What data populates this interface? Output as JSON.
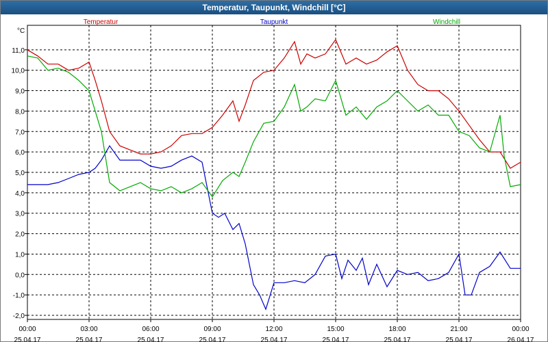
{
  "window": {
    "title": "Temperatur, Taupunkt, Windchill [°C]"
  },
  "chart_data": {
    "type": "line",
    "title": "Temperatur, Taupunkt, Windchill [°C]",
    "ylabel": "°C",
    "xlabel": "",
    "grid": true,
    "legend_position": "top",
    "ylim": [
      -2.2,
      12.2
    ],
    "xlim": [
      0,
      24
    ],
    "y_ticks": [
      11.0,
      10.0,
      9.0,
      8.0,
      7.0,
      6.0,
      5.0,
      4.0,
      3.0,
      2.0,
      1.0,
      0.0,
      -1.0,
      -2.0
    ],
    "y_tick_labels": [
      "11,0",
      "10,0",
      "9,0",
      "8,0",
      "7,0",
      "6,0",
      "5,0",
      "4,0",
      "3,0",
      "2,0",
      "1,0",
      "0,0",
      "-1,0",
      "-2,0"
    ],
    "x_ticks": [
      {
        "x": 0,
        "time": "00:00",
        "date": "25.04.17"
      },
      {
        "x": 3,
        "time": "03:00",
        "date": "25.04.17"
      },
      {
        "x": 6,
        "time": "06:00",
        "date": "25.04.17"
      },
      {
        "x": 9,
        "time": "09:00",
        "date": "25.04.17"
      },
      {
        "x": 12,
        "time": "12:00",
        "date": "25.04.17"
      },
      {
        "x": 15,
        "time": "15:00",
        "date": "25.04.17"
      },
      {
        "x": 18,
        "time": "18:00",
        "date": "25.04.17"
      },
      {
        "x": 21,
        "time": "21:00",
        "date": "25.04.17"
      },
      {
        "x": 24,
        "time": "00:00",
        "date": "26.04.17"
      }
    ],
    "series": [
      {
        "name": "Temperatur",
        "color": "#cc0000",
        "x": [
          0,
          0.5,
          1,
          1.5,
          2,
          2.5,
          3,
          3.3,
          3.6,
          4,
          4.5,
          5,
          5.5,
          6,
          6.5,
          7,
          7.5,
          8,
          8.5,
          9,
          9.5,
          10,
          10.3,
          10.6,
          11,
          11.5,
          12,
          12.5,
          13,
          13.3,
          13.6,
          14,
          14.5,
          15,
          15.5,
          16,
          16.5,
          17,
          17.5,
          18,
          18.5,
          19,
          19.5,
          20,
          20.5,
          21,
          21.5,
          22,
          22.5,
          23,
          23.5,
          24
        ],
        "y": [
          11.0,
          10.7,
          10.3,
          10.3,
          10.0,
          10.1,
          10.4,
          9.5,
          8.5,
          7.0,
          6.3,
          6.1,
          5.9,
          5.9,
          6.0,
          6.3,
          6.8,
          6.9,
          6.9,
          7.2,
          7.8,
          8.5,
          7.5,
          8.3,
          9.5,
          9.9,
          10.0,
          10.6,
          11.4,
          10.3,
          10.8,
          10.6,
          10.8,
          11.5,
          10.3,
          10.6,
          10.3,
          10.5,
          10.9,
          11.2,
          10.0,
          9.3,
          9.0,
          9.0,
          8.6,
          8.0,
          7.3,
          6.6,
          6.0,
          6.0,
          5.2,
          5.5
        ]
      },
      {
        "name": "Taupunkt",
        "color": "#0000cc",
        "x": [
          0,
          0.5,
          1,
          1.5,
          2,
          2.5,
          3,
          3.3,
          3.6,
          4,
          4.5,
          5,
          5.5,
          6,
          6.5,
          7,
          7.5,
          8,
          8.5,
          9,
          9.3,
          9.6,
          10,
          10.3,
          10.6,
          11,
          11.3,
          11.6,
          12,
          12.5,
          13,
          13.5,
          14,
          14.5,
          15,
          15.3,
          15.6,
          16,
          16.3,
          16.6,
          17,
          17.5,
          18,
          18.5,
          19,
          19.5,
          20,
          20.5,
          21,
          21.3,
          21.6,
          22,
          22.5,
          23,
          23.5,
          24
        ],
        "y": [
          4.4,
          4.4,
          4.4,
          4.5,
          4.7,
          4.9,
          5.0,
          5.2,
          5.6,
          6.3,
          5.6,
          5.6,
          5.6,
          5.3,
          5.2,
          5.3,
          5.6,
          5.8,
          5.5,
          3.0,
          2.8,
          3.0,
          2.2,
          2.5,
          1.5,
          -0.5,
          -1.0,
          -1.7,
          -0.4,
          -0.4,
          -0.3,
          -0.4,
          0.0,
          0.9,
          1.0,
          -0.2,
          0.7,
          0.2,
          0.8,
          -0.5,
          0.5,
          -0.6,
          0.2,
          0.0,
          0.1,
          -0.3,
          -0.2,
          0.1,
          1.0,
          -1.0,
          -1.0,
          0.1,
          0.4,
          1.1,
          0.3,
          0.3
        ]
      },
      {
        "name": "Windchill",
        "color": "#00aa00",
        "x": [
          0,
          0.5,
          1,
          1.5,
          2,
          2.5,
          3,
          3.3,
          3.6,
          4,
          4.5,
          5,
          5.5,
          6,
          6.5,
          7,
          7.5,
          8,
          8.5,
          9,
          9.5,
          10,
          10.3,
          10.6,
          11,
          11.5,
          12,
          12.5,
          13,
          13.3,
          13.6,
          14,
          14.5,
          15,
          15.5,
          16,
          16.5,
          17,
          17.5,
          18,
          18.5,
          19,
          19.5,
          20,
          20.5,
          21,
          21.5,
          22,
          22.5,
          23,
          23.2,
          23.5,
          24
        ],
        "y": [
          10.7,
          10.6,
          10.0,
          10.1,
          9.9,
          9.5,
          9.0,
          8.0,
          7.0,
          4.5,
          4.1,
          4.3,
          4.5,
          4.2,
          4.1,
          4.3,
          4.0,
          4.2,
          4.5,
          3.8,
          4.6,
          5.0,
          4.8,
          5.5,
          6.5,
          7.4,
          7.5,
          8.2,
          9.3,
          8.0,
          8.2,
          8.6,
          8.5,
          9.5,
          7.8,
          8.2,
          7.6,
          8.2,
          8.5,
          9.0,
          8.5,
          8.0,
          8.3,
          7.8,
          7.8,
          7.0,
          6.8,
          6.2,
          6.0,
          7.8,
          5.8,
          4.3,
          4.4
        ]
      }
    ]
  }
}
